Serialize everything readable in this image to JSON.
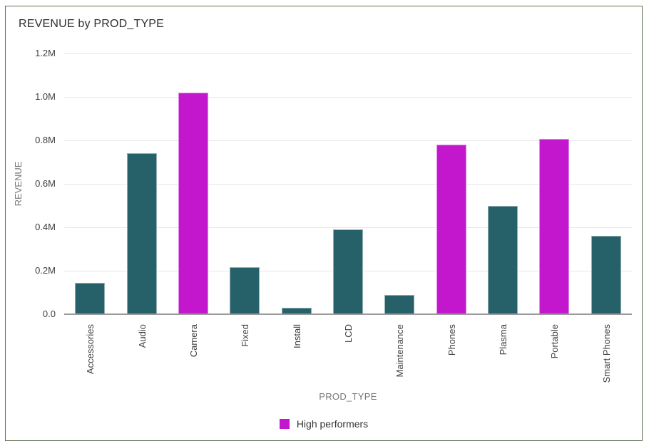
{
  "card": {
    "title": "REVENUE by PROD_TYPE"
  },
  "chart_data": {
    "type": "bar",
    "title": "REVENUE by PROD_TYPE",
    "xlabel": "PROD_TYPE",
    "ylabel": "REVENUE",
    "categories": [
      "Accessories",
      "Audio",
      "Camera",
      "Fixed",
      "Install",
      "LCD",
      "Maintenance",
      "Phones",
      "Plasma",
      "Portable",
      "Smart Phones"
    ],
    "values": [
      0.145,
      0.74,
      1.02,
      0.215,
      0.03,
      0.39,
      0.09,
      0.78,
      0.5,
      0.805,
      0.36
    ],
    "value_unit": "M",
    "ylim": [
      0,
      1.2
    ],
    "yticks": [
      {
        "label": "1.2M",
        "value": 1.2
      },
      {
        "label": "1.0M",
        "value": 1.0
      },
      {
        "label": "0.8M",
        "value": 0.8
      },
      {
        "label": "0.6M",
        "value": 0.6
      },
      {
        "label": "0.4M",
        "value": 0.4
      },
      {
        "label": "0.2M",
        "value": 0.2
      },
      {
        "label": "0.0",
        "value": 0.0
      }
    ],
    "grid": "horizontal",
    "highlight_indices": [
      2,
      7,
      9
    ],
    "legend": {
      "position": "bottom",
      "entries": [
        {
          "label": "High performers",
          "color": "#c217cd"
        }
      ]
    },
    "colors": {
      "bar_default": "#266069",
      "bar_highlight": "#c217cd",
      "axis_line": "#9b9b9b",
      "gridline": "#e7e7ec",
      "card_border": "#5d7150",
      "title_text": "#312d2a",
      "tick_text": "#3f3f3f",
      "axis_title_text": "#767676",
      "legend_text": "#333333"
    }
  }
}
